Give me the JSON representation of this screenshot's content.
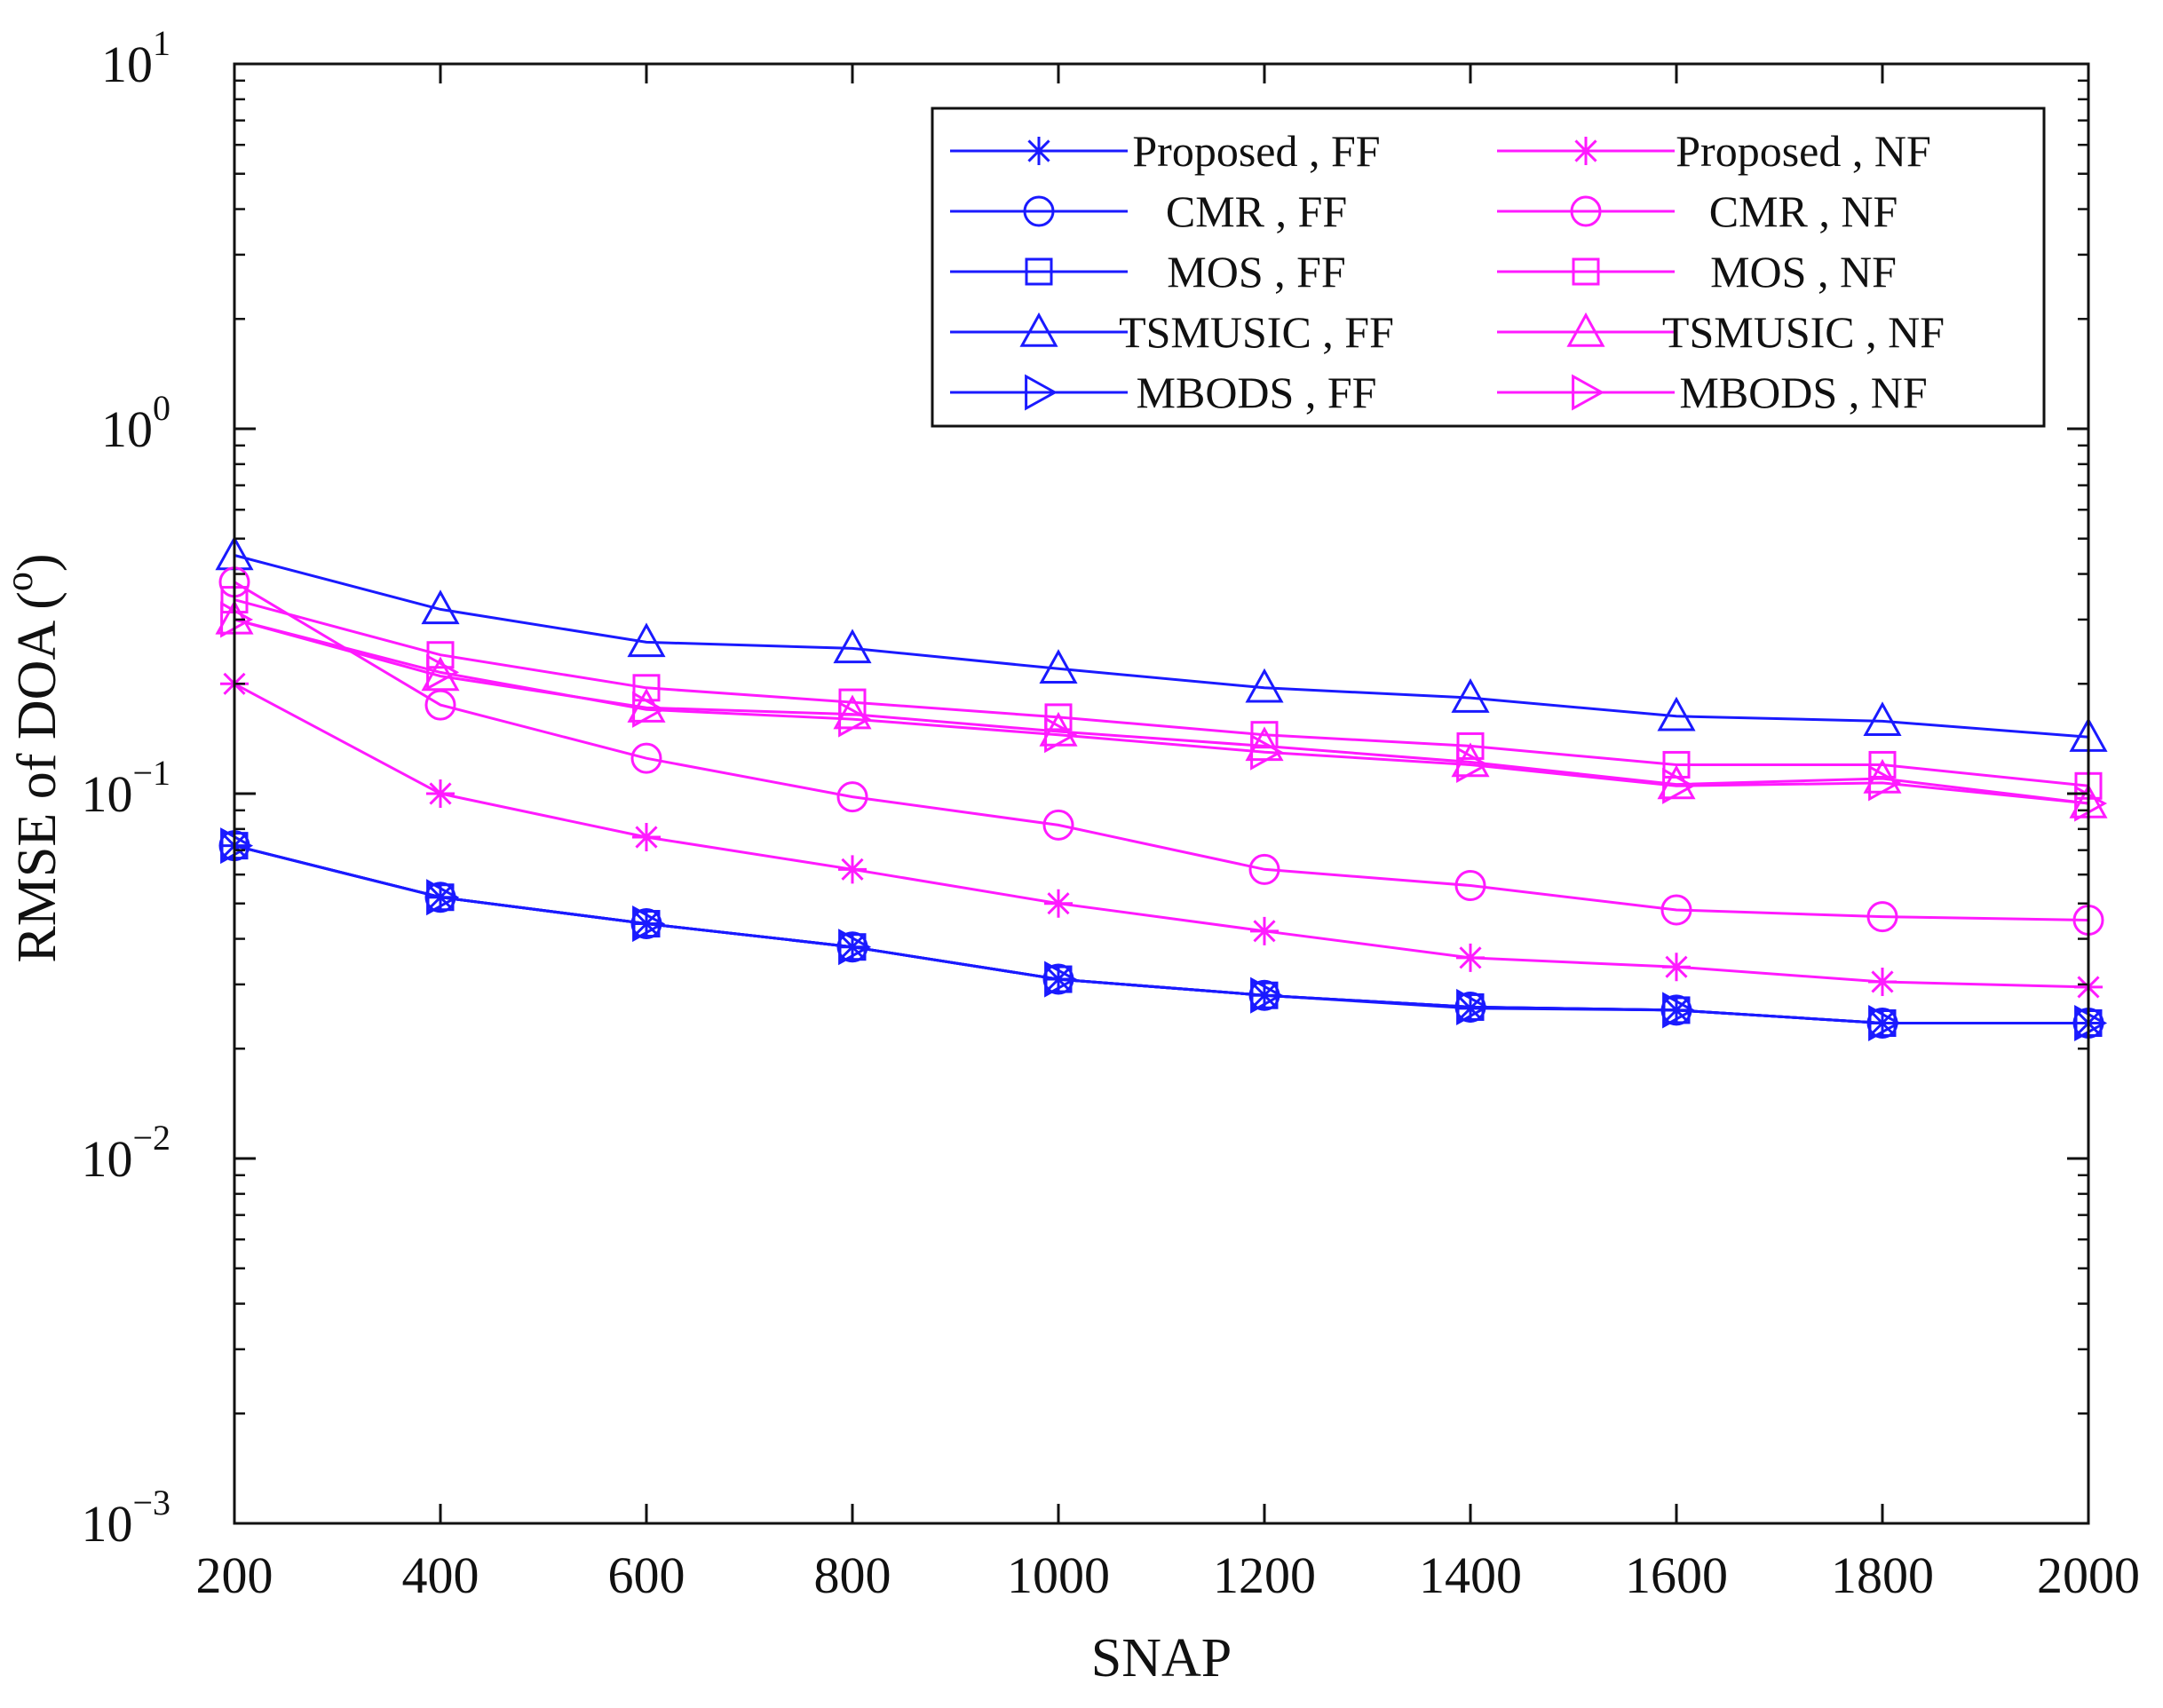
{
  "chart_data": {
    "type": "line",
    "xlabel": "SNAP",
    "ylabel": "RMSE  of  DOA (",
    "ylabel_sup": "o",
    "ylabel_end": ")",
    "xlim": [
      200,
      2000
    ],
    "ylim": [
      0.001,
      10
    ],
    "yscale": "log",
    "x": [
      200,
      400,
      600,
      800,
      1000,
      1200,
      1400,
      1600,
      1800,
      2000
    ],
    "x_ticks": [
      200,
      400,
      600,
      800,
      1000,
      1200,
      1400,
      1600,
      1800,
      2000
    ],
    "y_ticks": [
      {
        "value": 10,
        "base": "10",
        "exp": "1"
      },
      {
        "value": 1,
        "base": "10",
        "exp": "0"
      },
      {
        "value": 0.1,
        "base": "10",
        "exp": "−1"
      },
      {
        "value": 0.01,
        "base": "10",
        "exp": "−2"
      },
      {
        "value": 0.001,
        "base": "10",
        "exp": "−3"
      }
    ],
    "legend_position": "top-right",
    "legend_columns": 2,
    "grid": false,
    "colors": {
      "FF": "#1a1aff",
      "NF": "#ff1aff"
    },
    "series": [
      {
        "name": "Proposed , FF",
        "color": "#1a1aff",
        "marker": "star",
        "values": [
          0.072,
          0.052,
          0.044,
          0.038,
          0.031,
          0.028,
          0.0258,
          0.0255,
          0.0235,
          0.0235
        ]
      },
      {
        "name": "CMR , FF",
        "color": "#1a1aff",
        "marker": "circle",
        "values": [
          0.072,
          0.052,
          0.044,
          0.038,
          0.031,
          0.028,
          0.026,
          0.0255,
          0.0235,
          0.0235
        ]
      },
      {
        "name": "MOS , FF",
        "color": "#1a1aff",
        "marker": "square",
        "values": [
          0.072,
          0.052,
          0.044,
          0.038,
          0.031,
          0.028,
          0.026,
          0.0255,
          0.0235,
          0.0235
        ]
      },
      {
        "name": "TSMUSIC , FF",
        "color": "#1a1aff",
        "marker": "triangle-up",
        "values": [
          0.45,
          0.32,
          0.26,
          0.25,
          0.22,
          0.195,
          0.183,
          0.163,
          0.158,
          0.143
        ]
      },
      {
        "name": "MBODS , FF",
        "color": "#1a1aff",
        "marker": "triangle-right",
        "values": [
          0.072,
          0.052,
          0.044,
          0.038,
          0.031,
          0.028,
          0.026,
          0.0255,
          0.0235,
          0.0235
        ]
      },
      {
        "name": "Proposed , NF",
        "color": "#ff1aff",
        "marker": "star",
        "values": [
          0.2,
          0.1,
          0.076,
          0.062,
          0.05,
          0.042,
          0.0355,
          0.0335,
          0.0305,
          0.0295
        ]
      },
      {
        "name": "CMR , NF",
        "color": "#ff1aff",
        "marker": "circle",
        "values": [
          0.38,
          0.175,
          0.125,
          0.098,
          0.082,
          0.062,
          0.056,
          0.048,
          0.046,
          0.045
        ]
      },
      {
        "name": "MOS , NF",
        "color": "#ff1aff",
        "marker": "square",
        "values": [
          0.34,
          0.24,
          0.195,
          0.178,
          0.162,
          0.145,
          0.135,
          0.12,
          0.12,
          0.105
        ]
      },
      {
        "name": "TSMUSIC , NF",
        "color": "#ff1aff",
        "marker": "triangle-up",
        "values": [
          0.3,
          0.21,
          0.172,
          0.165,
          0.148,
          0.135,
          0.122,
          0.106,
          0.11,
          0.094
        ]
      },
      {
        "name": "MBODS , NF",
        "color": "#ff1aff",
        "marker": "triangle-right",
        "values": [
          0.3,
          0.215,
          0.17,
          0.16,
          0.145,
          0.13,
          0.12,
          0.105,
          0.107,
          0.094
        ]
      }
    ]
  }
}
